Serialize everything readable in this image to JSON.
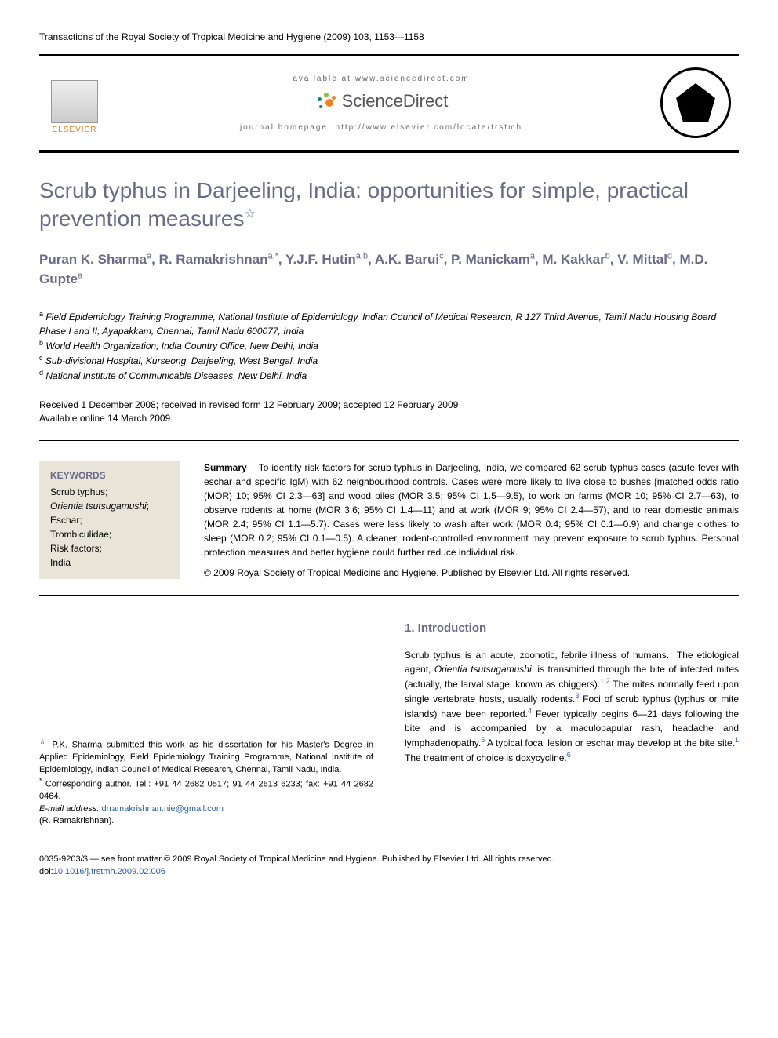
{
  "journal_header": "Transactions of the Royal Society of Tropical Medicine and Hygiene (2009) 103, 1153—1158",
  "header": {
    "elsevier": "ELSEVIER",
    "available_at": "available at www.sciencedirect.com",
    "sciencedirect": "ScienceDirect",
    "homepage": "journal homepage: http://www.elsevier.com/locate/trstmh",
    "sd_colors": {
      "main": "#f58220",
      "light": "#8bc34a",
      "dark": "#00897b"
    }
  },
  "title": "Scrub typhus in Darjeeling, India: opportunities for simple, practical prevention measures",
  "title_star": "☆",
  "authors_html": "Puran K. Sharma<sup>a</sup>, R. Ramakrishnan<sup>a,*</sup>, Y.J.F. Hutin<sup>a,b</sup>, A.K. Barui<sup>c</sup>, P. Manickam<sup>a</sup>, M. Kakkar<sup>b</sup>, V. Mittal<sup>d</sup>, M.D. Gupte<sup>a</sup>",
  "affiliations": [
    {
      "sup": "a",
      "text": "Field Epidemiology Training Programme, National Institute of Epidemiology, Indian Council of Medical Research, R 127 Third Avenue, Tamil Nadu Housing Board Phase I and II, Ayapakkam, Chennai, Tamil Nadu 600077, India"
    },
    {
      "sup": "b",
      "text": "World Health Organization, India Country Office, New Delhi, India"
    },
    {
      "sup": "c",
      "text": "Sub-divisional Hospital, Kurseong, Darjeeling, West Bengal, India"
    },
    {
      "sup": "d",
      "text": "National Institute of Communicable Diseases, New Delhi, India"
    }
  ],
  "dates": {
    "received": "Received 1 December 2008; received in revised form 12 February 2009; accepted 12 February 2009",
    "online": "Available online 14 March 2009"
  },
  "keywords": {
    "title": "KEYWORDS",
    "items": [
      "Scrub typhus;",
      "<i>Orientia tsutsugamushi</i>;",
      "Eschar;",
      "Trombiculidae;",
      "Risk factors;",
      "India"
    ]
  },
  "summary": {
    "label": "Summary",
    "text": "To identify risk factors for scrub typhus in Darjeeling, India, we compared 62 scrub typhus cases (acute fever with eschar and specific IgM) with 62 neighbourhood controls. Cases were more likely to live close to bushes [matched odds ratio (MOR) 10; 95% CI 2.3—63] and wood piles (MOR 3.5; 95% CI 1.5—9.5), to work on farms (MOR 10; 95% CI 2.7—63), to observe rodents at home (MOR 3.6; 95% CI 1.4—11) and at work (MOR 9; 95% CI 2.4—57), and to rear domestic animals (MOR 2.4; 95% CI 1.1—5.7). Cases were less likely to wash after work (MOR 0.4; 95% CI 0.1—0.9) and change clothes to sleep (MOR 0.2; 95% CI 0.1—0.5). A cleaner, rodent-controlled environment may prevent exposure to scrub typhus. Personal protection measures and better hygiene could further reduce individual risk.",
    "copyright": "© 2009 Royal Society of Tropical Medicine and Hygiene. Published by Elsevier Ltd. All rights reserved."
  },
  "footnotes": {
    "star": "P.K. Sharma submitted this work as his dissertation for his Master's Degree in Applied Epidemiology, Field Epidemiology Training Programme, National Institute of Epidemiology, Indian Council of Medical Research, Chennai, Tamil Nadu, India.",
    "corresponding": "Corresponding author. Tel.: +91 44 2682 0517; 91 44 2613 6233; fax: +91 44 2682 0464.",
    "email_label": "E-mail address:",
    "email": "drramakrishnan.nie@gmail.com",
    "email_attrib": "(R. Ramakrishnan)."
  },
  "intro": {
    "heading": "1. Introduction",
    "text_html": "Scrub typhus is an acute, zoonotic, febrile illness of humans.<sup>1</sup> The etiological agent, <i>Orientia tsutsugamushi</i>, is transmitted through the bite of infected mites (actually, the larval stage, known as chiggers).<sup>1,2</sup> The mites normally feed upon single vertebrate hosts, usually rodents.<sup>3</sup> Foci of scrub typhus (typhus or mite islands) have been reported.<sup>4</sup> Fever typically begins 6—21 days following the bite and is accompanied by a maculopapular rash, headache and lymphadenopathy.<sup>5</sup> A typical focal lesion or eschar may develop at the bite site.<sup>1</sup> The treatment of choice is doxycycline.<sup>6</sup>"
  },
  "footer": {
    "line1": "0035-9203/$ — see front matter © 2009 Royal Society of Tropical Medicine and Hygiene. Published by Elsevier Ltd. All rights reserved.",
    "doi_label": "doi:",
    "doi": "10.1016/j.trstmh.2009.02.006"
  },
  "colors": {
    "heading": "#6a6a8a",
    "link": "#2a5db0",
    "keywords_bg": "#e8e4d8"
  }
}
